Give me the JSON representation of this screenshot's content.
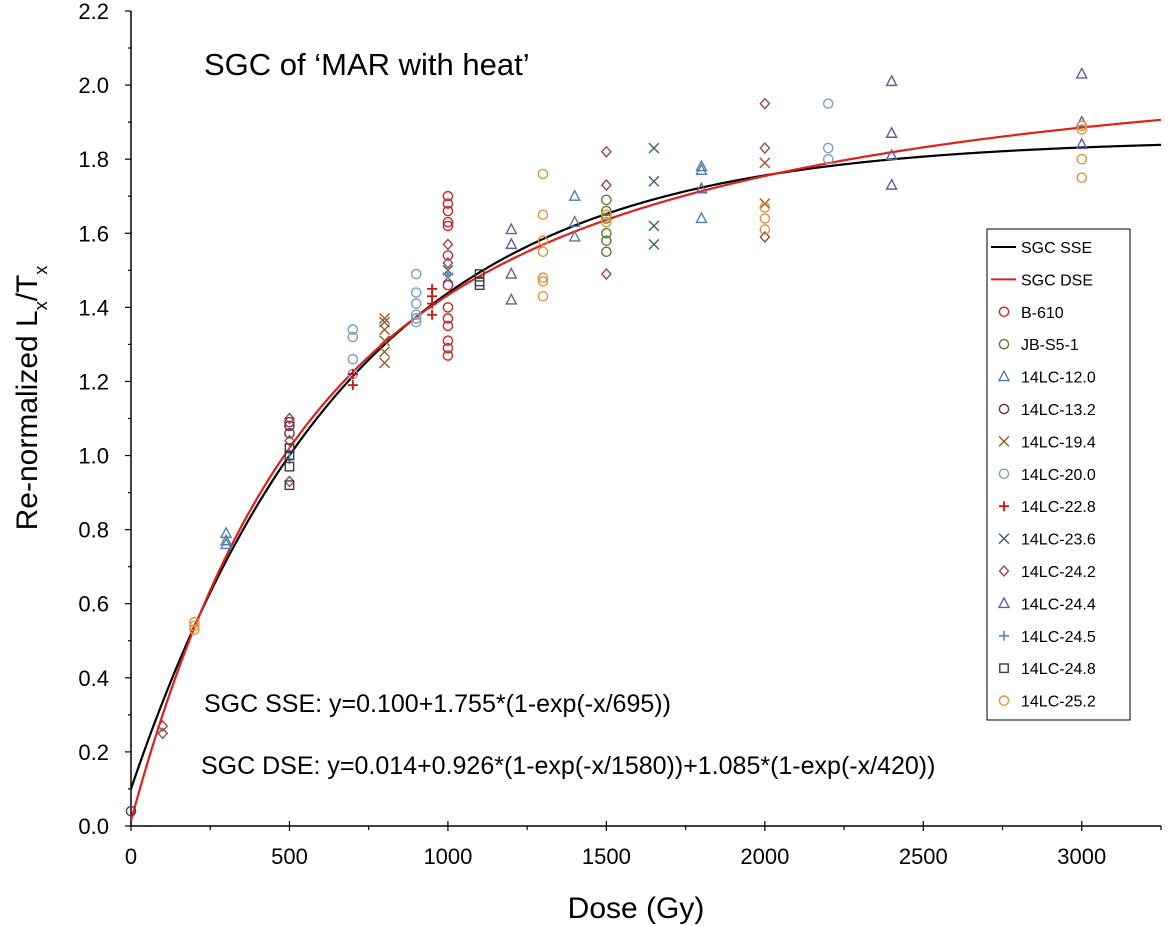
{
  "chart_data": {
    "type": "scatter",
    "title": "SGC of ‘MAR with heat’",
    "xlabel": "Dose (Gy)",
    "ylabel": "Re-normalized L_x/T_x",
    "xlim": [
      0,
      3250
    ],
    "ylim": [
      0,
      2.2
    ],
    "x_ticks": [
      0,
      500,
      1000,
      1500,
      2000,
      2500,
      3000
    ],
    "y_ticks": [
      0.0,
      0.2,
      0.4,
      0.6,
      0.8,
      1.0,
      1.2,
      1.4,
      1.6,
      1.8,
      2.0,
      2.2
    ],
    "x_tick_labels": [
      "0",
      "500",
      "1000",
      "1500",
      "2000",
      "2500",
      "3000"
    ],
    "y_tick_labels": [
      "0.0",
      "0.2",
      "0.4",
      "0.6",
      "0.8",
      "1.0",
      "1.2",
      "1.4",
      "1.6",
      "1.8",
      "2.0",
      "2.2"
    ],
    "grid": false,
    "legend_position": "right",
    "annotations": [
      "SGC SSE: y=0.100+1.755*(1-exp(-x/695))",
      "SGC DSE: y=0.014+0.926*(1-exp(-x/1580))+1.085*(1-exp(-x/420))"
    ],
    "fits": [
      {
        "name": "SGC SSE",
        "color": "#000000",
        "params": {
          "a": 0.1,
          "terms": [
            [
              1.755,
              695
            ]
          ]
        }
      },
      {
        "name": "SGC DSE",
        "color": "#e0201c",
        "params": {
          "a": 0.014,
          "terms": [
            [
              0.926,
              1580
            ],
            [
              1.085,
              420
            ]
          ]
        }
      }
    ],
    "series": [
      {
        "name": "B-610",
        "marker": "circle",
        "color": "#c8282a",
        "x": [
          1000,
          1000,
          1000,
          1000,
          1000,
          1000,
          1000,
          1000,
          1000,
          1000,
          1000,
          1000,
          1000
        ],
        "y": [
          1.27,
          1.29,
          1.31,
          1.35,
          1.37,
          1.4,
          1.46,
          1.54,
          1.62,
          1.63,
          1.66,
          1.68,
          1.7
        ]
      },
      {
        "name": "JB-S5-1",
        "marker": "circle",
        "color": "#5e7a35",
        "x": [
          1500,
          1500,
          1500,
          1500,
          1500,
          1500
        ],
        "y": [
          1.55,
          1.58,
          1.6,
          1.64,
          1.66,
          1.69
        ]
      },
      {
        "name": "14LC-12.0",
        "marker": "triangle",
        "color": "#4f7db0",
        "x": [
          300,
          300,
          300,
          1400,
          1400,
          1400,
          1800,
          1800,
          1800
        ],
        "y": [
          0.76,
          0.77,
          0.79,
          1.59,
          1.63,
          1.7,
          1.64,
          1.77,
          1.78
        ]
      },
      {
        "name": "14LC-13.2",
        "marker": "circle",
        "color": "#6e2f45",
        "x": [
          0,
          500,
          500,
          500
        ],
        "y": [
          0.04,
          1.06,
          1.08,
          1.09
        ]
      },
      {
        "name": "14LC-19.4",
        "marker": "x",
        "color": "#9a5a24",
        "x": [
          800,
          800,
          800,
          800,
          800,
          800,
          2000,
          2000
        ],
        "y": [
          1.25,
          1.28,
          1.31,
          1.34,
          1.36,
          1.37,
          1.68,
          1.79
        ]
      },
      {
        "name": "14LC-20.0",
        "marker": "circle",
        "color": "#7f9dc6",
        "x": [
          700,
          700,
          700,
          700,
          900,
          900,
          900,
          900,
          900,
          900,
          2200,
          2200,
          2200
        ],
        "y": [
          1.22,
          1.26,
          1.32,
          1.34,
          1.36,
          1.38,
          1.41,
          1.44,
          1.49,
          1.37,
          1.8,
          1.83,
          1.95
        ]
      },
      {
        "name": "14LC-22.8",
        "marker": "plus",
        "color": "#cc1414",
        "x": [
          700,
          700,
          950,
          950,
          950,
          950
        ],
        "y": [
          1.19,
          1.22,
          1.38,
          1.41,
          1.43,
          1.45
        ]
      },
      {
        "name": "14LC-23.6",
        "marker": "x",
        "color": "#3a6272",
        "x": [
          1000,
          1000,
          1650,
          1650,
          1650,
          1650
        ],
        "y": [
          1.48,
          1.5,
          1.57,
          1.62,
          1.74,
          1.83
        ]
      },
      {
        "name": "14LC-24.2",
        "marker": "diamond",
        "color": "#9c4a4a",
        "x": [
          100,
          100,
          500,
          500,
          500,
          1000,
          1000,
          1500,
          1500,
          1500,
          2000,
          2000,
          2000
        ],
        "y": [
          0.25,
          0.27,
          0.93,
          1.04,
          1.1,
          1.52,
          1.57,
          1.49,
          1.73,
          1.82,
          1.59,
          1.83,
          1.95
        ]
      },
      {
        "name": "14LC-24.4",
        "marker": "triangle",
        "color": "#6b5b9a",
        "x": [
          1200,
          1200,
          1200,
          1200,
          1800,
          2400,
          2400,
          2400,
          2400,
          3000,
          3000,
          3000
        ],
        "y": [
          1.42,
          1.49,
          1.57,
          1.61,
          1.72,
          1.73,
          1.81,
          1.87,
          2.01,
          1.84,
          1.9,
          2.03
        ]
      },
      {
        "name": "14LC-24.5",
        "marker": "plus",
        "color": "#6b8fb8",
        "x": [
          500,
          500,
          1000
        ],
        "y": [
          0.99,
          1.01,
          1.49
        ]
      },
      {
        "name": "14LC-24.8",
        "marker": "square",
        "color": "#3d3d3d",
        "x": [
          500,
          500,
          500,
          500,
          1100,
          1100,
          1100
        ],
        "y": [
          0.92,
          0.97,
          1.0,
          1.02,
          1.46,
          1.47,
          1.49
        ]
      },
      {
        "name": "14LC-25.2",
        "marker": "circle",
        "color": "#e0943a",
        "x": [
          200,
          200,
          200,
          1300,
          1300,
          1300,
          1300,
          1300,
          1300,
          1300,
          1500,
          1500,
          2000,
          2000,
          2000,
          3000,
          3000,
          3000,
          3000
        ],
        "y": [
          0.53,
          0.54,
          0.55,
          1.43,
          1.47,
          1.48,
          1.55,
          1.58,
          1.65,
          1.76,
          1.63,
          1.65,
          1.61,
          1.64,
          1.67,
          1.75,
          1.8,
          1.88,
          1.89
        ]
      }
    ],
    "legend": [
      {
        "name": "SGC SSE",
        "kind": "line",
        "color": "#000000"
      },
      {
        "name": "SGC DSE",
        "kind": "line",
        "color": "#e0201c"
      },
      {
        "name": "B-610",
        "kind": "circle",
        "color": "#c8282a"
      },
      {
        "name": "JB-S5-1",
        "kind": "circle",
        "color": "#5e7a35"
      },
      {
        "name": "14LC-12.0",
        "kind": "triangle",
        "color": "#4f7db0"
      },
      {
        "name": "14LC-13.2",
        "kind": "circle",
        "color": "#6e2f45"
      },
      {
        "name": "14LC-19.4",
        "kind": "x",
        "color": "#9a5a24"
      },
      {
        "name": "14LC-20.0",
        "kind": "circle",
        "color": "#7f9dc6"
      },
      {
        "name": "14LC-22.8",
        "kind": "plus",
        "color": "#cc1414"
      },
      {
        "name": "14LC-23.6",
        "kind": "x",
        "color": "#3a6272"
      },
      {
        "name": "14LC-24.2",
        "kind": "diamond",
        "color": "#9c4a4a"
      },
      {
        "name": "14LC-24.4",
        "kind": "triangle",
        "color": "#6b5b9a"
      },
      {
        "name": "14LC-24.5",
        "kind": "plus",
        "color": "#6b8fb8"
      },
      {
        "name": "14LC-24.8",
        "kind": "square",
        "color": "#3d3d3d"
      },
      {
        "name": "14LC-25.2",
        "kind": "circle",
        "color": "#e0943a"
      }
    ]
  }
}
